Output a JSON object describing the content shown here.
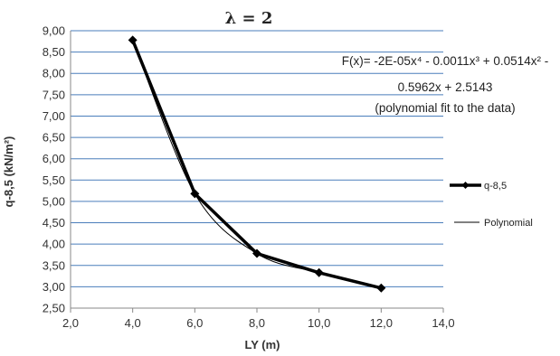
{
  "chart_data": {
    "type": "line",
    "title": "λ = 2",
    "xlabel": "LY (m)",
    "ylabel": "q-8,5 (kN/m²)",
    "xlim": [
      2.0,
      14.0
    ],
    "ylim": [
      2.5,
      9.0
    ],
    "x_ticks": [
      "2,0",
      "4,0",
      "6,0",
      "8,0",
      "10,0",
      "12,0",
      "14,0"
    ],
    "y_ticks": [
      "2,50",
      "3,00",
      "3,50",
      "4,00",
      "4,50",
      "5,00",
      "5,50",
      "6,00",
      "6,50",
      "7,00",
      "7,50",
      "8,00",
      "8,50",
      "9,00"
    ],
    "grid": "horizontal",
    "grid_color": "#4a7ebb",
    "legend_placement": "right",
    "series": [
      {
        "name": "q-8,5",
        "style": "thick-line-with-diamond-markers",
        "color": "#000000",
        "x": [
          4,
          6,
          8,
          10,
          12
        ],
        "y": [
          8.78,
          5.18,
          3.78,
          3.33,
          2.97
        ]
      },
      {
        "name": "Polynomial",
        "style": "thin-line",
        "color": "#000000",
        "coefficients": [
          -2e-05,
          -0.0011,
          0.0514,
          -0.5962,
          2.5143
        ]
      }
    ],
    "annotation": {
      "lines": [
        "F(x)= -2E-05x⁴ - 0.0011x³ + 0.0514x² -",
        "0.5962x + 2.5143",
        "(polynomial fit to the data)"
      ]
    }
  }
}
